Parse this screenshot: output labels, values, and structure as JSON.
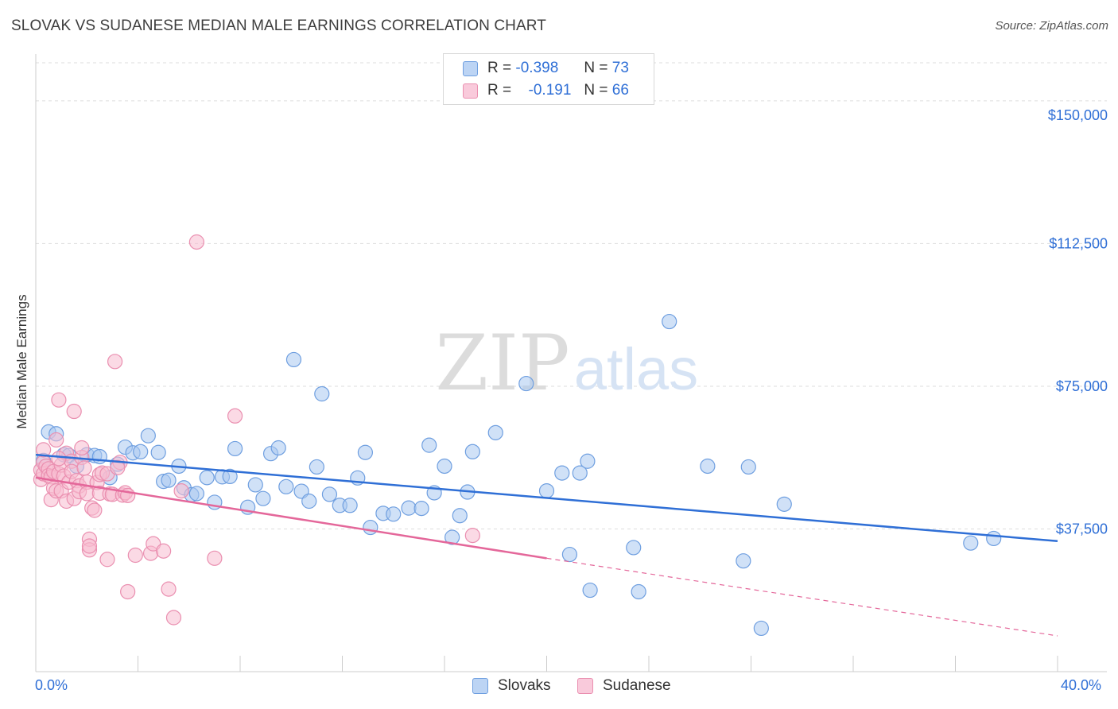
{
  "header": {
    "title": "SLOVAK VS SUDANESE MEDIAN MALE EARNINGS CORRELATION CHART",
    "source": "Source: ZipAtlas.com"
  },
  "watermark": {
    "zip": "ZIP",
    "atlas": "atlas"
  },
  "legend": {
    "r_label": "R =",
    "n_label": "N =",
    "rows": [
      {
        "r": "-0.398",
        "n": "73",
        "color": "#a9c8f0",
        "border": "#6f9fe0"
      },
      {
        "r": "-0.191",
        "n": "66",
        "color": "#f7bcd0",
        "border": "#ea8fb0"
      }
    ]
  },
  "bottom_legend": [
    "Slovaks",
    "Sudanese"
  ],
  "chart_data": {
    "type": "scatter",
    "title": "SLOVAK VS SUDANESE MEDIAN MALE EARNINGS CORRELATION CHART",
    "xlabel": "",
    "ylabel": "Median Male Earnings",
    "xlim": [
      0,
      40
    ],
    "ylim": [
      0,
      160000
    ],
    "x_tick_labels": [
      "0.0%",
      "40.0%"
    ],
    "y_ticks": [
      37500,
      75000,
      112500,
      150000
    ],
    "y_tick_labels": [
      "$37,500",
      "$75,000",
      "$112,500",
      "$150,000"
    ],
    "grid": "horizontal dashed",
    "legend_position": "top-center",
    "series": [
      {
        "name": "Slovaks",
        "color": "#6f9fe0",
        "fill": "#a9c8f0",
        "line_color": "#2f6fd6",
        "trend": {
          "x": [
            0,
            40
          ],
          "y": [
            57000,
            34300
          ]
        },
        "points": [
          [
            0.5,
            63000
          ],
          [
            0.8,
            62500
          ],
          [
            1.1,
            57000
          ],
          [
            1.3,
            56800
          ],
          [
            1.6,
            54000
          ],
          [
            2.0,
            57000
          ],
          [
            2.3,
            56800
          ],
          [
            2.5,
            56500
          ],
          [
            2.9,
            51000
          ],
          [
            3.2,
            54500
          ],
          [
            3.5,
            59000
          ],
          [
            3.8,
            57500
          ],
          [
            4.1,
            57800
          ],
          [
            4.4,
            62000
          ],
          [
            4.8,
            57600
          ],
          [
            5.0,
            50000
          ],
          [
            5.2,
            50300
          ],
          [
            5.6,
            54000
          ],
          [
            5.8,
            48300
          ],
          [
            6.1,
            46500
          ],
          [
            6.3,
            46800
          ],
          [
            6.7,
            51000
          ],
          [
            7.0,
            44500
          ],
          [
            7.3,
            51200
          ],
          [
            7.6,
            51300
          ],
          [
            7.8,
            58600
          ],
          [
            8.3,
            43200
          ],
          [
            8.6,
            49100
          ],
          [
            8.9,
            45500
          ],
          [
            9.2,
            57300
          ],
          [
            9.5,
            58800
          ],
          [
            9.8,
            48600
          ],
          [
            10.1,
            82000
          ],
          [
            10.4,
            47400
          ],
          [
            10.7,
            44800
          ],
          [
            11.0,
            53800
          ],
          [
            11.2,
            73000
          ],
          [
            11.5,
            46600
          ],
          [
            11.9,
            43700
          ],
          [
            12.3,
            43700
          ],
          [
            12.6,
            50900
          ],
          [
            12.9,
            57600
          ],
          [
            13.1,
            37900
          ],
          [
            13.6,
            41600
          ],
          [
            14.0,
            41400
          ],
          [
            14.6,
            43000
          ],
          [
            15.1,
            42900
          ],
          [
            15.4,
            59500
          ],
          [
            15.6,
            47000
          ],
          [
            16.0,
            54000
          ],
          [
            16.3,
            35300
          ],
          [
            16.6,
            41000
          ],
          [
            16.9,
            47200
          ],
          [
            17.1,
            57800
          ],
          [
            18.0,
            62800
          ],
          [
            19.2,
            75700
          ],
          [
            20.0,
            47500
          ],
          [
            20.6,
            52200
          ],
          [
            20.9,
            30800
          ],
          [
            21.3,
            52200
          ],
          [
            21.6,
            55300
          ],
          [
            21.7,
            21400
          ],
          [
            23.4,
            32600
          ],
          [
            23.6,
            21000
          ],
          [
            24.8,
            92000
          ],
          [
            26.3,
            54000
          ],
          [
            27.7,
            29100
          ],
          [
            27.9,
            53800
          ],
          [
            28.4,
            11400
          ],
          [
            29.3,
            44000
          ],
          [
            36.6,
            33800
          ],
          [
            37.5,
            35000
          ],
          [
            0.3,
            55500
          ]
        ]
      },
      {
        "name": "Sudanese",
        "color": "#ea8fb0",
        "fill": "#f7bcd0",
        "line_color": "#e4679a",
        "trend": {
          "x": [
            0,
            20
          ],
          "y": [
            51000,
            29800
          ]
        },
        "trend_dashed": {
          "x": [
            20,
            40
          ],
          "y": [
            29800,
            9400
          ]
        },
        "points": [
          [
            0.2,
            50500
          ],
          [
            0.2,
            53000
          ],
          [
            0.3,
            55000
          ],
          [
            0.3,
            58300
          ],
          [
            0.3,
            52000
          ],
          [
            0.4,
            54000
          ],
          [
            0.5,
            53300
          ],
          [
            0.5,
            51500
          ],
          [
            0.6,
            51200
          ],
          [
            0.6,
            45200
          ],
          [
            0.7,
            52600
          ],
          [
            0.7,
            48200
          ],
          [
            0.8,
            60900
          ],
          [
            0.8,
            47500
          ],
          [
            0.9,
            71400
          ],
          [
            0.9,
            52000
          ],
          [
            1.0,
            54300
          ],
          [
            1.0,
            47500
          ],
          [
            1.1,
            51400
          ],
          [
            1.2,
            57400
          ],
          [
            1.2,
            44800
          ],
          [
            1.3,
            49800
          ],
          [
            1.4,
            55300
          ],
          [
            1.4,
            52600
          ],
          [
            1.5,
            68400
          ],
          [
            1.5,
            45500
          ],
          [
            1.6,
            50200
          ],
          [
            1.7,
            48800
          ],
          [
            1.7,
            47300
          ],
          [
            1.8,
            56300
          ],
          [
            1.9,
            53500
          ],
          [
            2.0,
            49800
          ],
          [
            2.0,
            46800
          ],
          [
            2.1,
            34800
          ],
          [
            2.1,
            32000
          ],
          [
            2.1,
            33000
          ],
          [
            2.2,
            43000
          ],
          [
            2.3,
            42400
          ],
          [
            2.4,
            49700
          ],
          [
            2.5,
            46900
          ],
          [
            2.5,
            51800
          ],
          [
            2.6,
            52200
          ],
          [
            2.8,
            52000
          ],
          [
            2.8,
            29500
          ],
          [
            2.9,
            46700
          ],
          [
            3.0,
            46600
          ],
          [
            3.1,
            81500
          ],
          [
            3.3,
            55000
          ],
          [
            3.4,
            46400
          ],
          [
            3.5,
            47000
          ],
          [
            3.6,
            46300
          ],
          [
            3.6,
            21000
          ],
          [
            3.9,
            30600
          ],
          [
            4.5,
            31100
          ],
          [
            4.6,
            33600
          ],
          [
            5.0,
            31700
          ],
          [
            5.2,
            21700
          ],
          [
            5.4,
            14200
          ],
          [
            5.7,
            47500
          ],
          [
            6.3,
            112900
          ],
          [
            7.0,
            29800
          ],
          [
            7.8,
            67200
          ],
          [
            17.1,
            35800
          ],
          [
            3.2,
            53600
          ],
          [
            1.8,
            58800
          ],
          [
            0.9,
            56000
          ]
        ]
      }
    ]
  }
}
